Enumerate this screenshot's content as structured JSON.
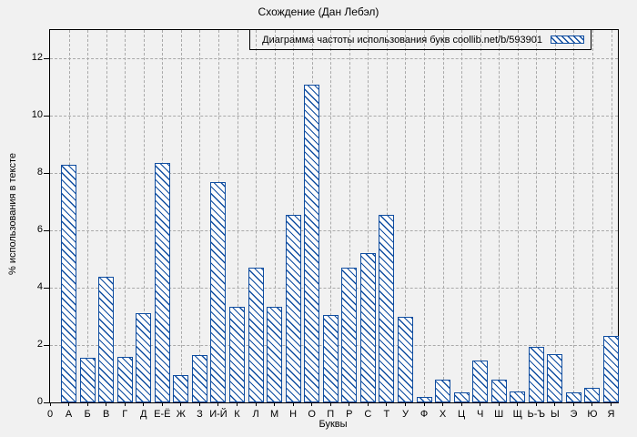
{
  "window": {
    "background_color": "#f1f1f1"
  },
  "chart_data": {
    "type": "bar",
    "title": "Схождение (Дан Лебэл)",
    "xlabel": "Буквы",
    "ylabel": "% использования в тексте",
    "legend": "Диаграмма частоты использования букв coollib.net/b/593901",
    "legend_position": "top-right-inside-box",
    "legend_swatch": "hatched-bar-sample",
    "grid": true,
    "ylim": [
      0,
      13
    ],
    "y_ticks": [
      0,
      2,
      4,
      6,
      8,
      10,
      12
    ],
    "x_origin_tick": "0",
    "categories": [
      "А",
      "Б",
      "В",
      "Г",
      "Д",
      "Е-Ё",
      "Ж",
      "З",
      "И-Й",
      "К",
      "Л",
      "М",
      "Н",
      "О",
      "П",
      "Р",
      "С",
      "Т",
      "У",
      "Ф",
      "Х",
      "Ц",
      "Ч",
      "Ш",
      "Щ",
      "Ь-Ъ",
      "Ы",
      "Э",
      "Ю",
      "Я"
    ],
    "values": [
      8.3,
      1.55,
      4.4,
      1.6,
      3.1,
      8.35,
      0.95,
      1.65,
      7.7,
      3.35,
      4.7,
      3.35,
      6.55,
      11.1,
      3.05,
      4.7,
      5.2,
      6.55,
      3.0,
      0.18,
      0.78,
      0.35,
      1.45,
      0.8,
      0.38,
      1.95,
      1.7,
      0.35,
      0.5,
      2.33
    ],
    "bar_style": "diagonal-hatch",
    "colors": {
      "bar": "#0f4da0",
      "bar_fill": "#fdfdfd",
      "grid": "#a9a9a9",
      "axis": "#000000",
      "background": "#f1f1f1"
    }
  }
}
